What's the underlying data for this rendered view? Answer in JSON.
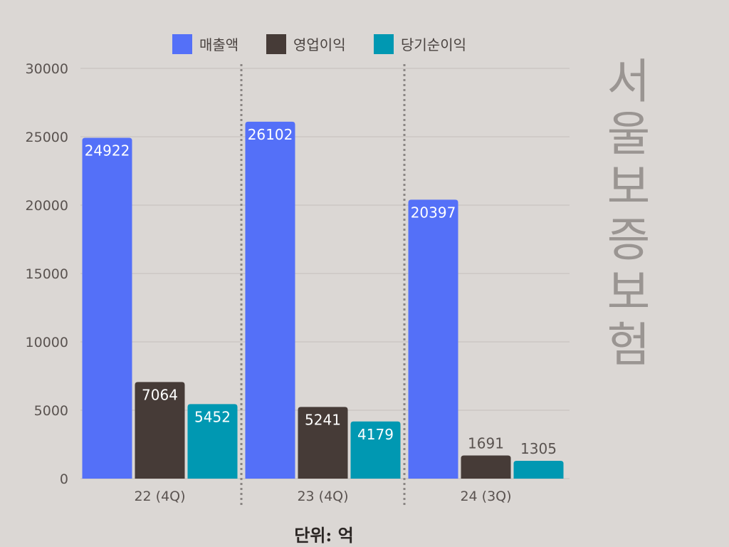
{
  "chart_data": {
    "type": "bar",
    "categories": [
      "22 (4Q)",
      "23 (4Q)",
      "24 (3Q)"
    ],
    "series": [
      {
        "name": "매출액",
        "values": [
          24922,
          26102,
          20397
        ],
        "color": "#5470f8"
      },
      {
        "name": "영업이익",
        "values": [
          7064,
          5241,
          1691
        ],
        "color": "#463b37"
      },
      {
        "name": "당기순이익",
        "values": [
          5452,
          4179,
          1305
        ],
        "color": "#0098b2"
      }
    ],
    "ylim": [
      0,
      30000
    ],
    "yticks": [
      "0",
      "5000",
      "10000",
      "15000",
      "20000",
      "25000",
      "30000"
    ],
    "grid": true,
    "legend": "top",
    "unit_note": "단위: 억",
    "side_title": "서울보증보험"
  }
}
